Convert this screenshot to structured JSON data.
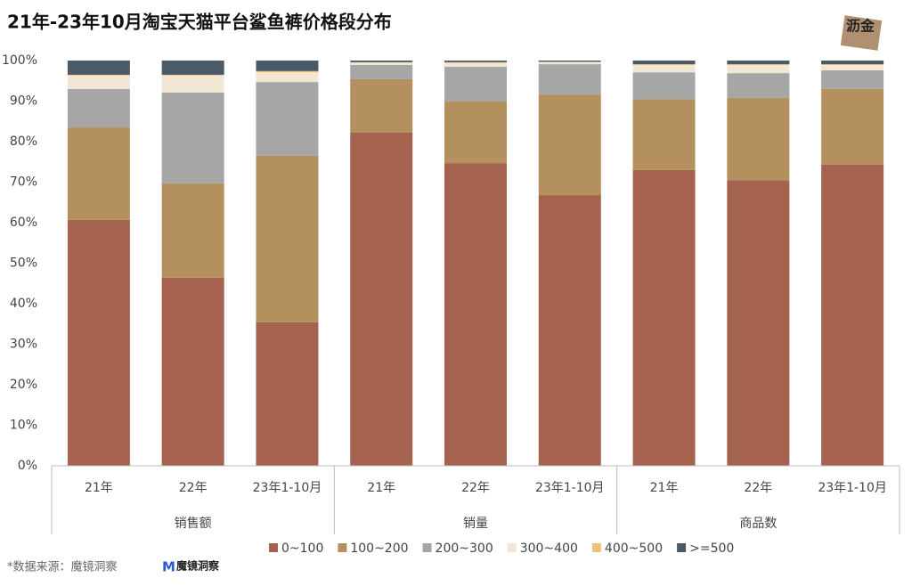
{
  "chart_data": {
    "type": "stacked-bar",
    "title": "21年-23年10月淘宝天猫平台鲨鱼裤价格段分布",
    "groups": [
      {
        "name": "销售额",
        "categories": [
          "21年",
          "22年",
          "23年1-10月"
        ]
      },
      {
        "name": "销量",
        "categories": [
          "21年",
          "22年",
          "23年1-10月"
        ]
      },
      {
        "name": "商品数",
        "categories": [
          "21年",
          "22年",
          "23年1-10月"
        ]
      }
    ],
    "series": [
      {
        "name": "0~100",
        "color": "#a5634f",
        "values": [
          60.7,
          46.4,
          35.4,
          82.2,
          74.7,
          66.8,
          73.0,
          70.5,
          74.3
        ]
      },
      {
        "name": "100~200",
        "color": "#b5905f",
        "values": [
          22.8,
          23.3,
          41.1,
          13.2,
          15.2,
          24.8,
          17.5,
          20.3,
          18.7
        ]
      },
      {
        "name": "200~300",
        "color": "#a6a6a6",
        "values": [
          9.5,
          22.4,
          18.2,
          3.5,
          8.6,
          7.5,
          6.6,
          6.1,
          4.6
        ]
      },
      {
        "name": "300~400",
        "color": "#f1e7d4",
        "values": [
          3.3,
          4.2,
          2.4,
          0.6,
          0.9,
          0.5,
          1.8,
          2.0,
          1.3
        ]
      },
      {
        "name": "400~500",
        "color": "#f0c07c",
        "values": [
          0.2,
          0.2,
          0.3,
          0.1,
          0.2,
          0.1,
          0.2,
          0.2,
          0.2
        ]
      },
      {
        "name": ">=500",
        "color": "#4a5a66",
        "values": [
          3.5,
          3.5,
          2.6,
          0.4,
          0.4,
          0.3,
          0.9,
          0.9,
          0.9
        ]
      }
    ],
    "ylim": [
      0,
      100
    ],
    "yticks": [
      {
        "value": 0,
        "label": "0%"
      },
      {
        "value": 10,
        "label": "10%"
      },
      {
        "value": 20,
        "label": "20%"
      },
      {
        "value": 30,
        "label": "30%"
      },
      {
        "value": 40,
        "label": "40%"
      },
      {
        "value": 50,
        "label": "50%"
      },
      {
        "value": 60,
        "label": "60%"
      },
      {
        "value": 70,
        "label": "70%"
      },
      {
        "value": 80,
        "label": "80%"
      },
      {
        "value": 90,
        "label": "90%"
      },
      {
        "value": 100,
        "label": "100%"
      }
    ],
    "grid": false,
    "legend": "bottom",
    "source": "*数据来源：魔镜洞察",
    "logo": "魔镜洞察",
    "watermark": "沥金"
  }
}
